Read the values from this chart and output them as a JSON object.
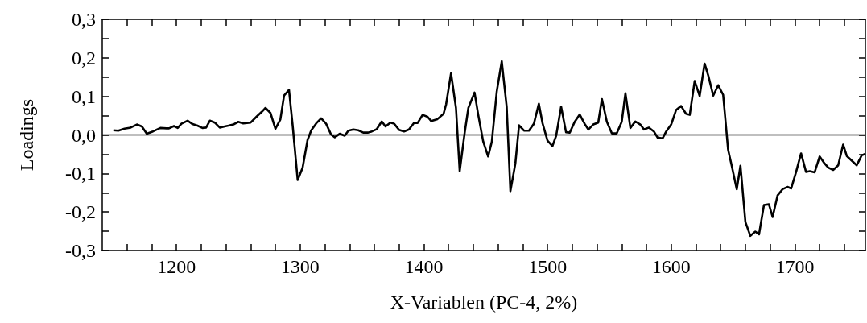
{
  "chart_data": {
    "type": "line",
    "xlabel": "X-Variablen (PC-4, 2%)",
    "ylabel": "Loadings",
    "x": [
      1149,
      1153,
      1158,
      1163,
      1168,
      1172,
      1176,
      1181,
      1187,
      1192,
      1194,
      1198,
      1201,
      1204,
      1209,
      1213,
      1217,
      1221,
      1224,
      1227,
      1231,
      1235,
      1239,
      1242,
      1246,
      1250,
      1254,
      1257,
      1260,
      1265,
      1269,
      1272,
      1276,
      1280,
      1284,
      1287,
      1291,
      1294,
      1298,
      1302,
      1306,
      1309,
      1313,
      1317,
      1321,
      1325,
      1328,
      1332,
      1336,
      1339,
      1343,
      1347,
      1351,
      1355,
      1358,
      1362,
      1366,
      1369,
      1373,
      1376,
      1380,
      1384,
      1388,
      1392,
      1395,
      1399,
      1403,
      1406,
      1411,
      1416,
      1418,
      1422,
      1426,
      1429,
      1433,
      1436,
      1441,
      1444,
      1448,
      1452,
      1455,
      1459,
      1463,
      1467,
      1470,
      1474,
      1477,
      1481,
      1485,
      1489,
      1493,
      1496,
      1500,
      1504,
      1507,
      1511,
      1515,
      1518,
      1522,
      1526,
      1530,
      1533,
      1537,
      1541,
      1544,
      1548,
      1552,
      1556,
      1560,
      1563,
      1567,
      1571,
      1575,
      1578,
      1582,
      1586,
      1589,
      1593,
      1596,
      1600,
      1604,
      1608,
      1612,
      1615,
      1619,
      1623,
      1627,
      1630,
      1634,
      1638,
      1642,
      1646,
      1649,
      1653,
      1656,
      1660,
      1664,
      1668,
      1671,
      1675,
      1679,
      1682,
      1686,
      1690,
      1694,
      1697,
      1701,
      1705,
      1709,
      1712,
      1716,
      1720,
      1724,
      1727,
      1731,
      1735,
      1739,
      1742,
      1746,
      1750,
      1754,
      1757
    ],
    "series": [
      {
        "color": "#000000",
        "values": [
          0.012,
          0.011,
          0.016,
          0.019,
          0.027,
          0.022,
          0.003,
          0.009,
          0.018,
          0.017,
          0.017,
          0.023,
          0.018,
          0.029,
          0.037,
          0.028,
          0.024,
          0.018,
          0.019,
          0.037,
          0.032,
          0.019,
          0.022,
          0.024,
          0.027,
          0.034,
          0.03,
          0.031,
          0.032,
          0.048,
          0.06,
          0.07,
          0.057,
          0.016,
          0.04,
          0.102,
          0.117,
          0.023,
          -0.117,
          -0.085,
          -0.013,
          0.012,
          0.03,
          0.043,
          0.029,
          0.001,
          -0.006,
          0.003,
          -0.002,
          0.011,
          0.014,
          0.012,
          0.006,
          0.006,
          0.009,
          0.015,
          0.035,
          0.022,
          0.032,
          0.029,
          0.013,
          0.009,
          0.014,
          0.031,
          0.031,
          0.052,
          0.047,
          0.036,
          0.041,
          0.055,
          0.079,
          0.16,
          0.07,
          -0.094,
          0.005,
          0.07,
          0.11,
          0.052,
          -0.017,
          -0.056,
          -0.017,
          0.113,
          0.191,
          0.073,
          -0.146,
          -0.074,
          0.025,
          0.011,
          0.011,
          0.029,
          0.081,
          0.03,
          -0.015,
          -0.029,
          -0.002,
          0.073,
          0.007,
          0.006,
          0.034,
          0.053,
          0.029,
          0.014,
          0.027,
          0.032,
          0.093,
          0.034,
          0.004,
          0.004,
          0.034,
          0.108,
          0.018,
          0.035,
          0.027,
          0.014,
          0.019,
          0.009,
          -0.007,
          -0.009,
          0.009,
          0.027,
          0.065,
          0.075,
          0.055,
          0.052,
          0.14,
          0.101,
          0.185,
          0.154,
          0.102,
          0.129,
          0.104,
          -0.038,
          -0.081,
          -0.141,
          -0.08,
          -0.226,
          -0.262,
          -0.251,
          -0.258,
          -0.182,
          -0.18,
          -0.213,
          -0.157,
          -0.141,
          -0.135,
          -0.139,
          -0.096,
          -0.048,
          -0.096,
          -0.094,
          -0.097,
          -0.056,
          -0.074,
          -0.085,
          -0.091,
          -0.079,
          -0.025,
          -0.055,
          -0.067,
          -0.079,
          -0.053,
          -0.049
        ]
      }
    ],
    "xlim": [
      1140,
      1757
    ],
    "xticks": [
      {
        "value": 1160,
        "label": null
      },
      {
        "value": 1180,
        "label": null
      },
      1200,
      {
        "value": 1220,
        "label": null
      },
      {
        "value": 1240,
        "label": null
      },
      {
        "value": 1260,
        "label": null
      },
      {
        "value": 1280,
        "label": null
      },
      1300,
      {
        "value": 1320,
        "label": null
      },
      {
        "value": 1340,
        "label": null
      },
      {
        "value": 1360,
        "label": null
      },
      {
        "value": 1380,
        "label": null
      },
      1400,
      {
        "value": 1420,
        "label": null
      },
      {
        "value": 1440,
        "label": null
      },
      {
        "value": 1460,
        "label": null
      },
      {
        "value": 1480,
        "label": null
      },
      1500,
      {
        "value": 1520,
        "label": null
      },
      {
        "value": 1540,
        "label": null
      },
      {
        "value": 1560,
        "label": null
      },
      {
        "value": 1580,
        "label": null
      },
      1600,
      {
        "value": 1620,
        "label": null
      },
      {
        "value": 1640,
        "label": null
      },
      {
        "value": 1660,
        "label": null
      },
      {
        "value": 1680,
        "label": null
      },
      1700,
      {
        "value": 1720,
        "label": null
      },
      {
        "value": 1740,
        "label": null
      }
    ],
    "ylim": [
      -0.3,
      0.3
    ],
    "yticks": [
      {
        "value": -0.3,
        "label": "-0,3"
      },
      {
        "value": -0.25,
        "label": null
      },
      {
        "value": -0.2,
        "label": "-0,2"
      },
      {
        "value": -0.15,
        "label": null
      },
      {
        "value": -0.1,
        "label": "-0,1"
      },
      {
        "value": -0.05,
        "label": null
      },
      {
        "value": 0,
        "label": "0,0"
      },
      {
        "value": 0.05,
        "label": null
      },
      {
        "value": 0.1,
        "label": "0,1"
      },
      {
        "value": 0.15,
        "label": null
      },
      {
        "value": 0.2,
        "label": "0,2"
      },
      {
        "value": 0.25,
        "label": null
      },
      {
        "value": 0.3,
        "label": "0,3"
      }
    ],
    "ref_lines": [
      {
        "axis": "y",
        "value": 0,
        "color": "#000000",
        "line_style": "solid"
      }
    ],
    "marker": "none",
    "line_style": "solid"
  }
}
